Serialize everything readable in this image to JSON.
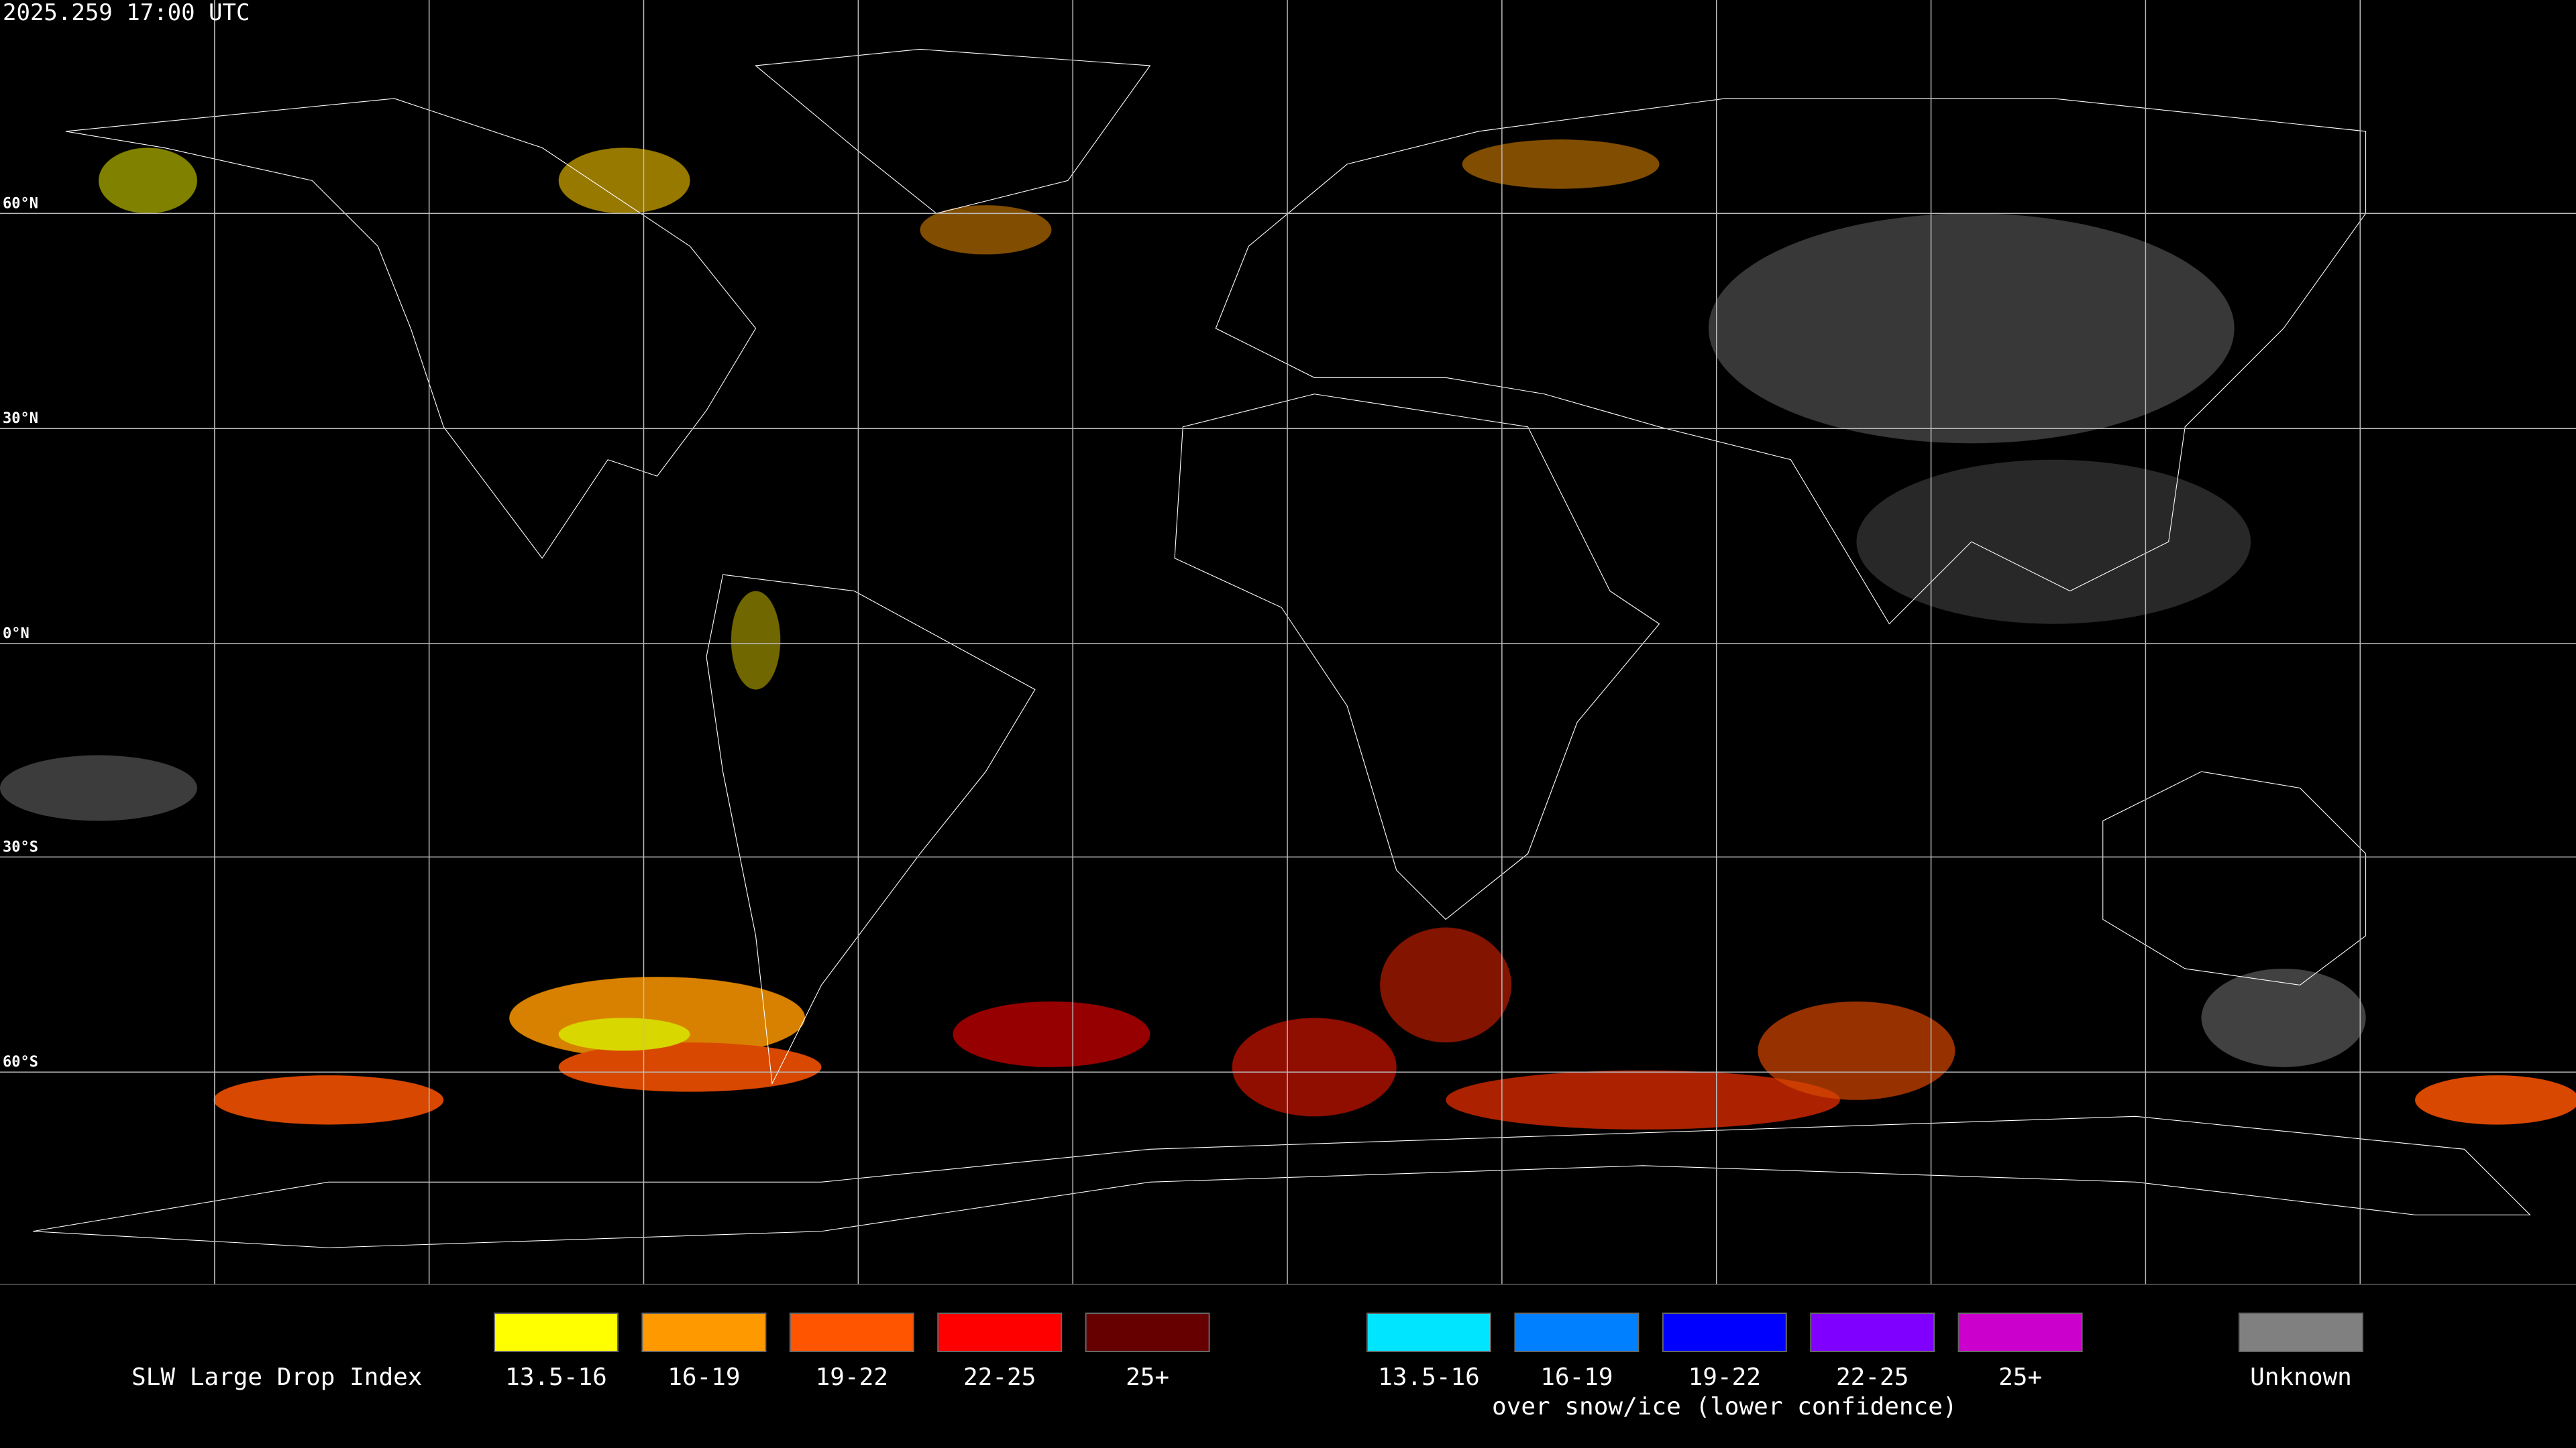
{
  "header": {
    "timestamp": "2025.259 17:00 UTC"
  },
  "map": {
    "latitude_labels": [
      "60°N",
      "30°N",
      "0°N",
      "30°S",
      "60°S"
    ]
  },
  "legend": {
    "title": "SLW Large Drop Index",
    "groups": [
      {
        "items": [
          {
            "label": "13.5-16",
            "color": "#ffff00"
          },
          {
            "label": "16-19",
            "color": "#ff9900"
          },
          {
            "label": "19-22",
            "color": "#ff5500"
          },
          {
            "label": "22-25",
            "color": "#ff0000"
          },
          {
            "label": "25+",
            "color": "#660000"
          }
        ]
      },
      {
        "subtitle": "over snow/ice (lower confidence)",
        "items": [
          {
            "label": "13.5-16",
            "color": "#00e5ff"
          },
          {
            "label": "16-19",
            "color": "#0080ff"
          },
          {
            "label": "19-22",
            "color": "#0000ff"
          },
          {
            "label": "22-25",
            "color": "#7f00ff"
          },
          {
            "label": "25+",
            "color": "#cc00cc"
          }
        ]
      },
      {
        "items": [
          {
            "label": "Unknown",
            "color": "#808080"
          }
        ]
      }
    ]
  }
}
